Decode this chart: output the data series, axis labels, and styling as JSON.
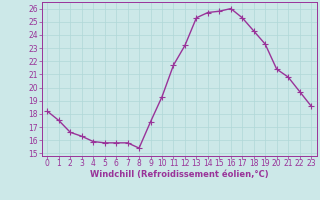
{
  "x": [
    0,
    1,
    2,
    3,
    4,
    5,
    6,
    7,
    8,
    9,
    10,
    11,
    12,
    13,
    14,
    15,
    16,
    17,
    18,
    19,
    20,
    21,
    22,
    23
  ],
  "y": [
    18.2,
    17.5,
    16.6,
    16.3,
    15.9,
    15.8,
    15.8,
    15.8,
    15.4,
    17.4,
    19.3,
    21.7,
    23.2,
    25.3,
    25.7,
    25.8,
    26.0,
    25.3,
    24.3,
    23.3,
    21.4,
    20.8,
    19.7,
    18.6
  ],
  "line_color": "#993399",
  "marker_color": "#993399",
  "bg_color": "#cce8e8",
  "grid_color": "#b0d8d8",
  "xlabel": "Windchill (Refroidissement éolien,°C)",
  "xlabel_color": "#993399",
  "tick_color": "#993399",
  "ylim": [
    15,
    26
  ],
  "xlim": [
    -0.5,
    23.5
  ],
  "yticks": [
    15,
    16,
    17,
    18,
    19,
    20,
    21,
    22,
    23,
    24,
    25,
    26
  ],
  "xticks": [
    0,
    1,
    2,
    3,
    4,
    5,
    6,
    7,
    8,
    9,
    10,
    11,
    12,
    13,
    14,
    15,
    16,
    17,
    18,
    19,
    20,
    21,
    22,
    23
  ],
  "marker_size": 2.5,
  "line_width": 1.0,
  "tick_fontsize": 5.5,
  "xlabel_fontsize": 6.0
}
